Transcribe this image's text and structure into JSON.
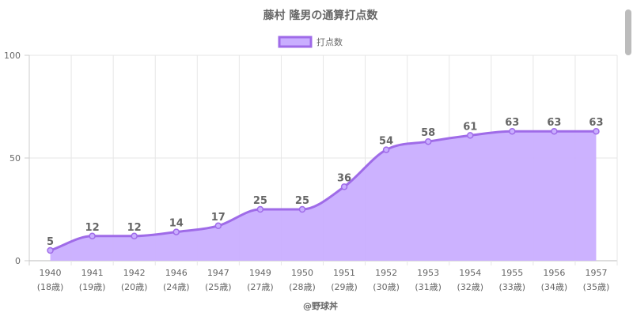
{
  "chart_data": {
    "type": "area",
    "title": "藤村 隆男の通算打点数",
    "legend_label": "打点数",
    "legend_position": "top",
    "x": [
      "1940",
      "1941",
      "1942",
      "1946",
      "1947",
      "1949",
      "1950",
      "1951",
      "1952",
      "1953",
      "1954",
      "1955",
      "1956",
      "1957"
    ],
    "x_sub": [
      "(18歳)",
      "(19歳)",
      "(20歳)",
      "(24歳)",
      "(25歳)",
      "(27歳)",
      "(28歳)",
      "(29歳)",
      "(30歳)",
      "(31歳)",
      "(32歳)",
      "(33歳)",
      "(34歳)",
      "(35歳)"
    ],
    "values": [
      5,
      12,
      12,
      14,
      17,
      25,
      25,
      36,
      54,
      58,
      61,
      63,
      63,
      63
    ],
    "ylim": [
      0,
      100
    ],
    "yticks": [
      0,
      50,
      100
    ],
    "grid": true,
    "colors": {
      "line": "#9f6be8",
      "fill": "#c9aeff",
      "text": "#666666",
      "grid": "#e6e6e6"
    }
  },
  "footer": "@野球丼"
}
